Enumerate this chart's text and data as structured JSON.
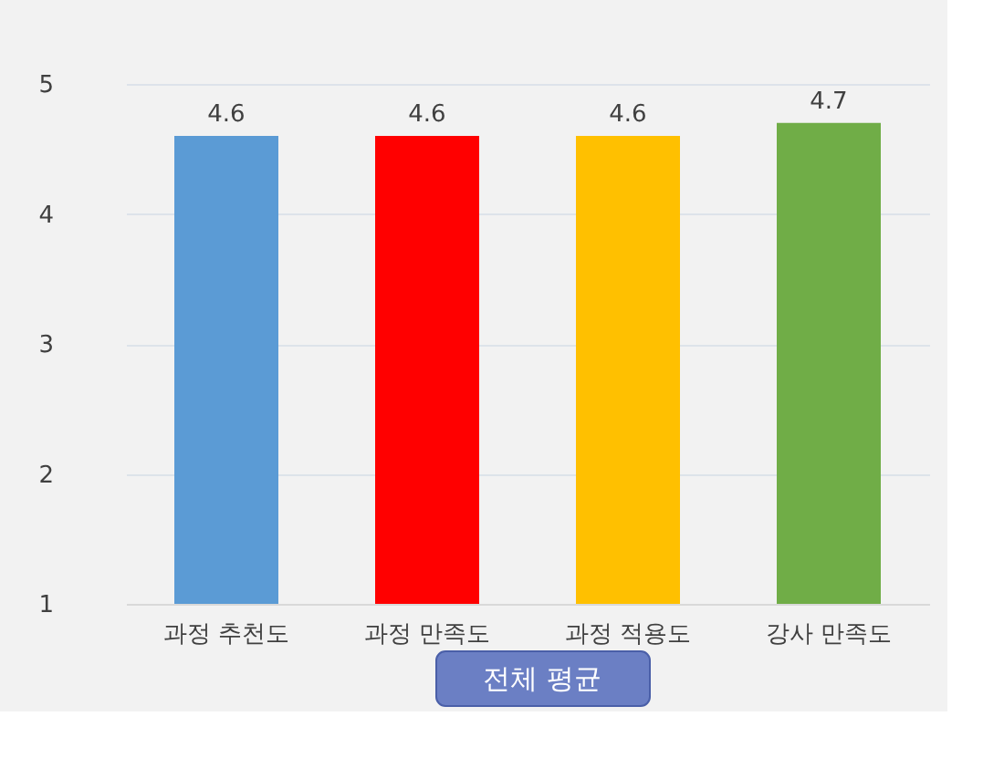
{
  "chart_data": {
    "type": "bar",
    "title": "전체 평균",
    "categories": [
      "과정 추천도",
      "과정 만족도",
      "과정 적용도",
      "강사 만족도"
    ],
    "values": [
      4.6,
      4.6,
      4.6,
      4.7
    ],
    "colors": [
      "#5b9bd5",
      "#ff0000",
      "#ffc000",
      "#70ad47"
    ],
    "ylim": [
      1,
      5
    ],
    "yticks": [
      1,
      2,
      3,
      4,
      5
    ],
    "grid": "y",
    "data_labels": true
  }
}
